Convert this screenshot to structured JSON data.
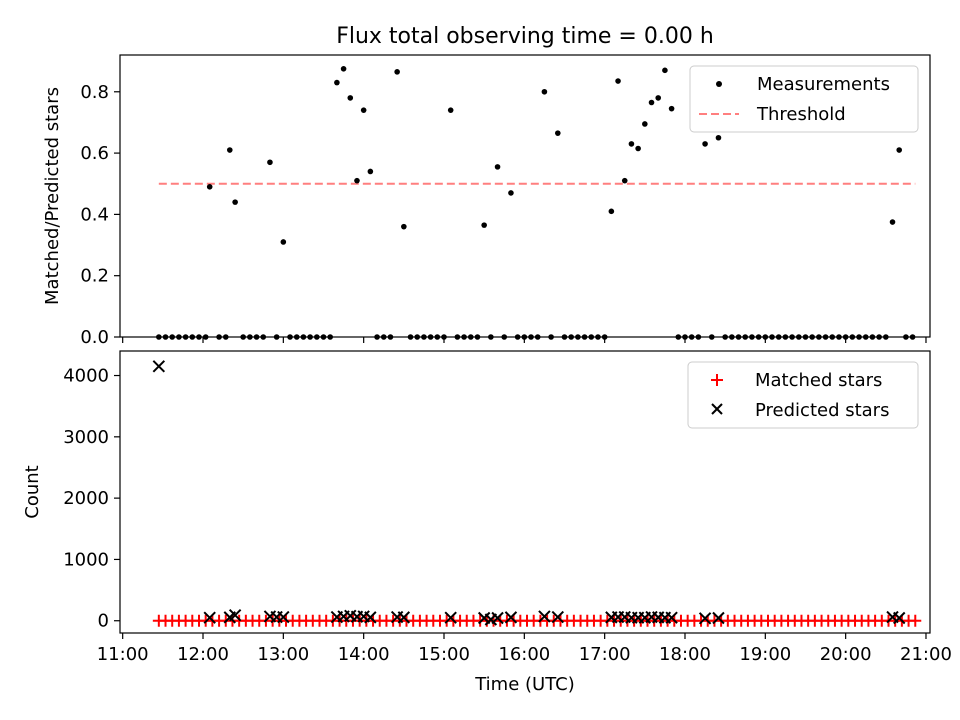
{
  "figure": {
    "title": "Flux total observing time = 0.00 h"
  },
  "colors": {
    "measurement": "#000000",
    "threshold": "#ff7f7f",
    "matched": "#ff0000",
    "predicted": "#000000"
  },
  "chart_data": [
    {
      "type": "scatter",
      "panel": "top",
      "ylabel": "Matched/Predicted stars",
      "ylim": [
        0,
        0.92
      ],
      "yticks": [
        "0.0",
        "0.2",
        "0.4",
        "0.6",
        "0.8"
      ],
      "xlim": [
        "11:00",
        "21:00"
      ],
      "legend": [
        "Measurements",
        "Threshold"
      ],
      "legend_position": "top-right",
      "threshold": {
        "name": "Threshold",
        "y": 0.5,
        "x": [
          "11:27",
          "20:52"
        ]
      },
      "series": [
        {
          "name": "Measurements",
          "points": [
            [
              "11:27",
              0
            ],
            [
              "11:32",
              0
            ],
            [
              "11:37",
              0
            ],
            [
              "11:42",
              0
            ],
            [
              "11:47",
              0
            ],
            [
              "11:52",
              0
            ],
            [
              "11:57",
              0
            ],
            [
              "12:02",
              0
            ],
            [
              "12:05",
              0.49
            ],
            [
              "12:12",
              0
            ],
            [
              "12:17",
              0
            ],
            [
              "12:20",
              0.61
            ],
            [
              "12:24",
              0.44
            ],
            [
              "12:30",
              0
            ],
            [
              "12:35",
              0
            ],
            [
              "12:40",
              0
            ],
            [
              "12:45",
              0
            ],
            [
              "12:50",
              0.57
            ],
            [
              "12:55",
              0
            ],
            [
              "13:00",
              0.31
            ],
            [
              "13:05",
              0
            ],
            [
              "13:10",
              0
            ],
            [
              "13:15",
              0
            ],
            [
              "13:20",
              0
            ],
            [
              "13:25",
              0
            ],
            [
              "13:30",
              0
            ],
            [
              "13:35",
              0
            ],
            [
              "13:40",
              0.83
            ],
            [
              "13:45",
              0.875
            ],
            [
              "13:50",
              0.78
            ],
            [
              "13:55",
              0.51
            ],
            [
              "14:00",
              0.74
            ],
            [
              "14:05",
              0.54
            ],
            [
              "14:10",
              0
            ],
            [
              "14:15",
              0
            ],
            [
              "14:20",
              0
            ],
            [
              "14:25",
              0.865
            ],
            [
              "14:30",
              0.36
            ],
            [
              "14:35",
              0
            ],
            [
              "14:40",
              0
            ],
            [
              "14:45",
              0
            ],
            [
              "14:50",
              0
            ],
            [
              "14:55",
              0
            ],
            [
              "15:00",
              0
            ],
            [
              "15:05",
              0.74
            ],
            [
              "15:10",
              0
            ],
            [
              "15:15",
              0
            ],
            [
              "15:20",
              0
            ],
            [
              "15:25",
              0
            ],
            [
              "15:30",
              0.365
            ],
            [
              "15:35",
              0
            ],
            [
              "15:40",
              0.555
            ],
            [
              "15:45",
              0
            ],
            [
              "15:50",
              0.47
            ],
            [
              "15:55",
              0
            ],
            [
              "16:00",
              0
            ],
            [
              "16:05",
              0
            ],
            [
              "16:10",
              0
            ],
            [
              "16:15",
              0.8
            ],
            [
              "16:20",
              0
            ],
            [
              "16:25",
              0.665
            ],
            [
              "16:30",
              0
            ],
            [
              "16:35",
              0
            ],
            [
              "16:40",
              0
            ],
            [
              "16:45",
              0
            ],
            [
              "16:50",
              0
            ],
            [
              "16:55",
              0
            ],
            [
              "17:00",
              0
            ],
            [
              "17:05",
              0.41
            ],
            [
              "17:10",
              0.835
            ],
            [
              "17:15",
              0.51
            ],
            [
              "17:20",
              0.63
            ],
            [
              "17:25",
              0.615
            ],
            [
              "17:30",
              0.695
            ],
            [
              "17:35",
              0.765
            ],
            [
              "17:40",
              0.78
            ],
            [
              "17:45",
              0.87
            ],
            [
              "17:50",
              0.745
            ],
            [
              "17:55",
              0
            ],
            [
              "18:00",
              0
            ],
            [
              "18:05",
              0
            ],
            [
              "18:10",
              0
            ],
            [
              "18:15",
              0.63
            ],
            [
              "18:20",
              0
            ],
            [
              "18:25",
              0.65
            ],
            [
              "18:30",
              0
            ],
            [
              "18:35",
              0
            ],
            [
              "18:40",
              0
            ],
            [
              "18:45",
              0
            ],
            [
              "18:50",
              0
            ],
            [
              "18:55",
              0
            ],
            [
              "19:00",
              0
            ],
            [
              "19:05",
              0
            ],
            [
              "19:10",
              0
            ],
            [
              "19:15",
              0
            ],
            [
              "19:20",
              0
            ],
            [
              "19:25",
              0
            ],
            [
              "19:30",
              0
            ],
            [
              "19:35",
              0
            ],
            [
              "19:40",
              0
            ],
            [
              "19:45",
              0
            ],
            [
              "19:50",
              0
            ],
            [
              "19:55",
              0
            ],
            [
              "20:00",
              0
            ],
            [
              "20:05",
              0
            ],
            [
              "20:10",
              0
            ],
            [
              "20:15",
              0
            ],
            [
              "20:20",
              0
            ],
            [
              "20:25",
              0
            ],
            [
              "20:30",
              0
            ],
            [
              "20:35",
              0.375
            ],
            [
              "20:40",
              0.61
            ],
            [
              "20:45",
              0
            ],
            [
              "20:50",
              0
            ]
          ]
        }
      ]
    },
    {
      "type": "scatter",
      "panel": "bottom",
      "xlabel": "Time (UTC)",
      "ylabel": "Count",
      "ylim": [
        -200,
        4400
      ],
      "yticks": [
        "0",
        "1000",
        "2000",
        "3000",
        "4000"
      ],
      "xlim": [
        "11:00",
        "21:00"
      ],
      "xticks": [
        "11:00",
        "12:00",
        "13:00",
        "14:00",
        "15:00",
        "16:00",
        "17:00",
        "18:00",
        "19:00",
        "20:00",
        "21:00"
      ],
      "legend": [
        "Matched stars",
        "Predicted stars"
      ],
      "legend_position": "top-right",
      "series": [
        {
          "name": "Matched stars",
          "x_start": "11:27",
          "x_end": "20:52",
          "x_step_minutes": 5,
          "typical_value": 0
        },
        {
          "name": "Predicted stars",
          "points": [
            [
              "11:27",
              4150
            ],
            [
              "12:05",
              50
            ],
            [
              "12:20",
              55
            ],
            [
              "12:24",
              90
            ],
            [
              "12:50",
              70
            ],
            [
              "12:55",
              60
            ],
            [
              "13:00",
              60
            ],
            [
              "13:40",
              60
            ],
            [
              "13:45",
              70
            ],
            [
              "13:50",
              80
            ],
            [
              "13:55",
              65
            ],
            [
              "14:00",
              70
            ],
            [
              "14:05",
              55
            ],
            [
              "14:25",
              60
            ],
            [
              "14:30",
              55
            ],
            [
              "15:05",
              50
            ],
            [
              "15:30",
              45
            ],
            [
              "15:35",
              20
            ],
            [
              "15:40",
              45
            ],
            [
              "15:50",
              55
            ],
            [
              "16:15",
              70
            ],
            [
              "16:25",
              60
            ],
            [
              "17:05",
              55
            ],
            [
              "17:10",
              60
            ],
            [
              "17:15",
              60
            ],
            [
              "17:20",
              50
            ],
            [
              "17:25",
              50
            ],
            [
              "17:30",
              50
            ],
            [
              "17:35",
              60
            ],
            [
              "17:40",
              55
            ],
            [
              "17:45",
              50
            ],
            [
              "17:50",
              50
            ],
            [
              "18:15",
              40
            ],
            [
              "18:25",
              45
            ],
            [
              "20:35",
              60
            ],
            [
              "20:40",
              45
            ]
          ]
        }
      ]
    }
  ]
}
